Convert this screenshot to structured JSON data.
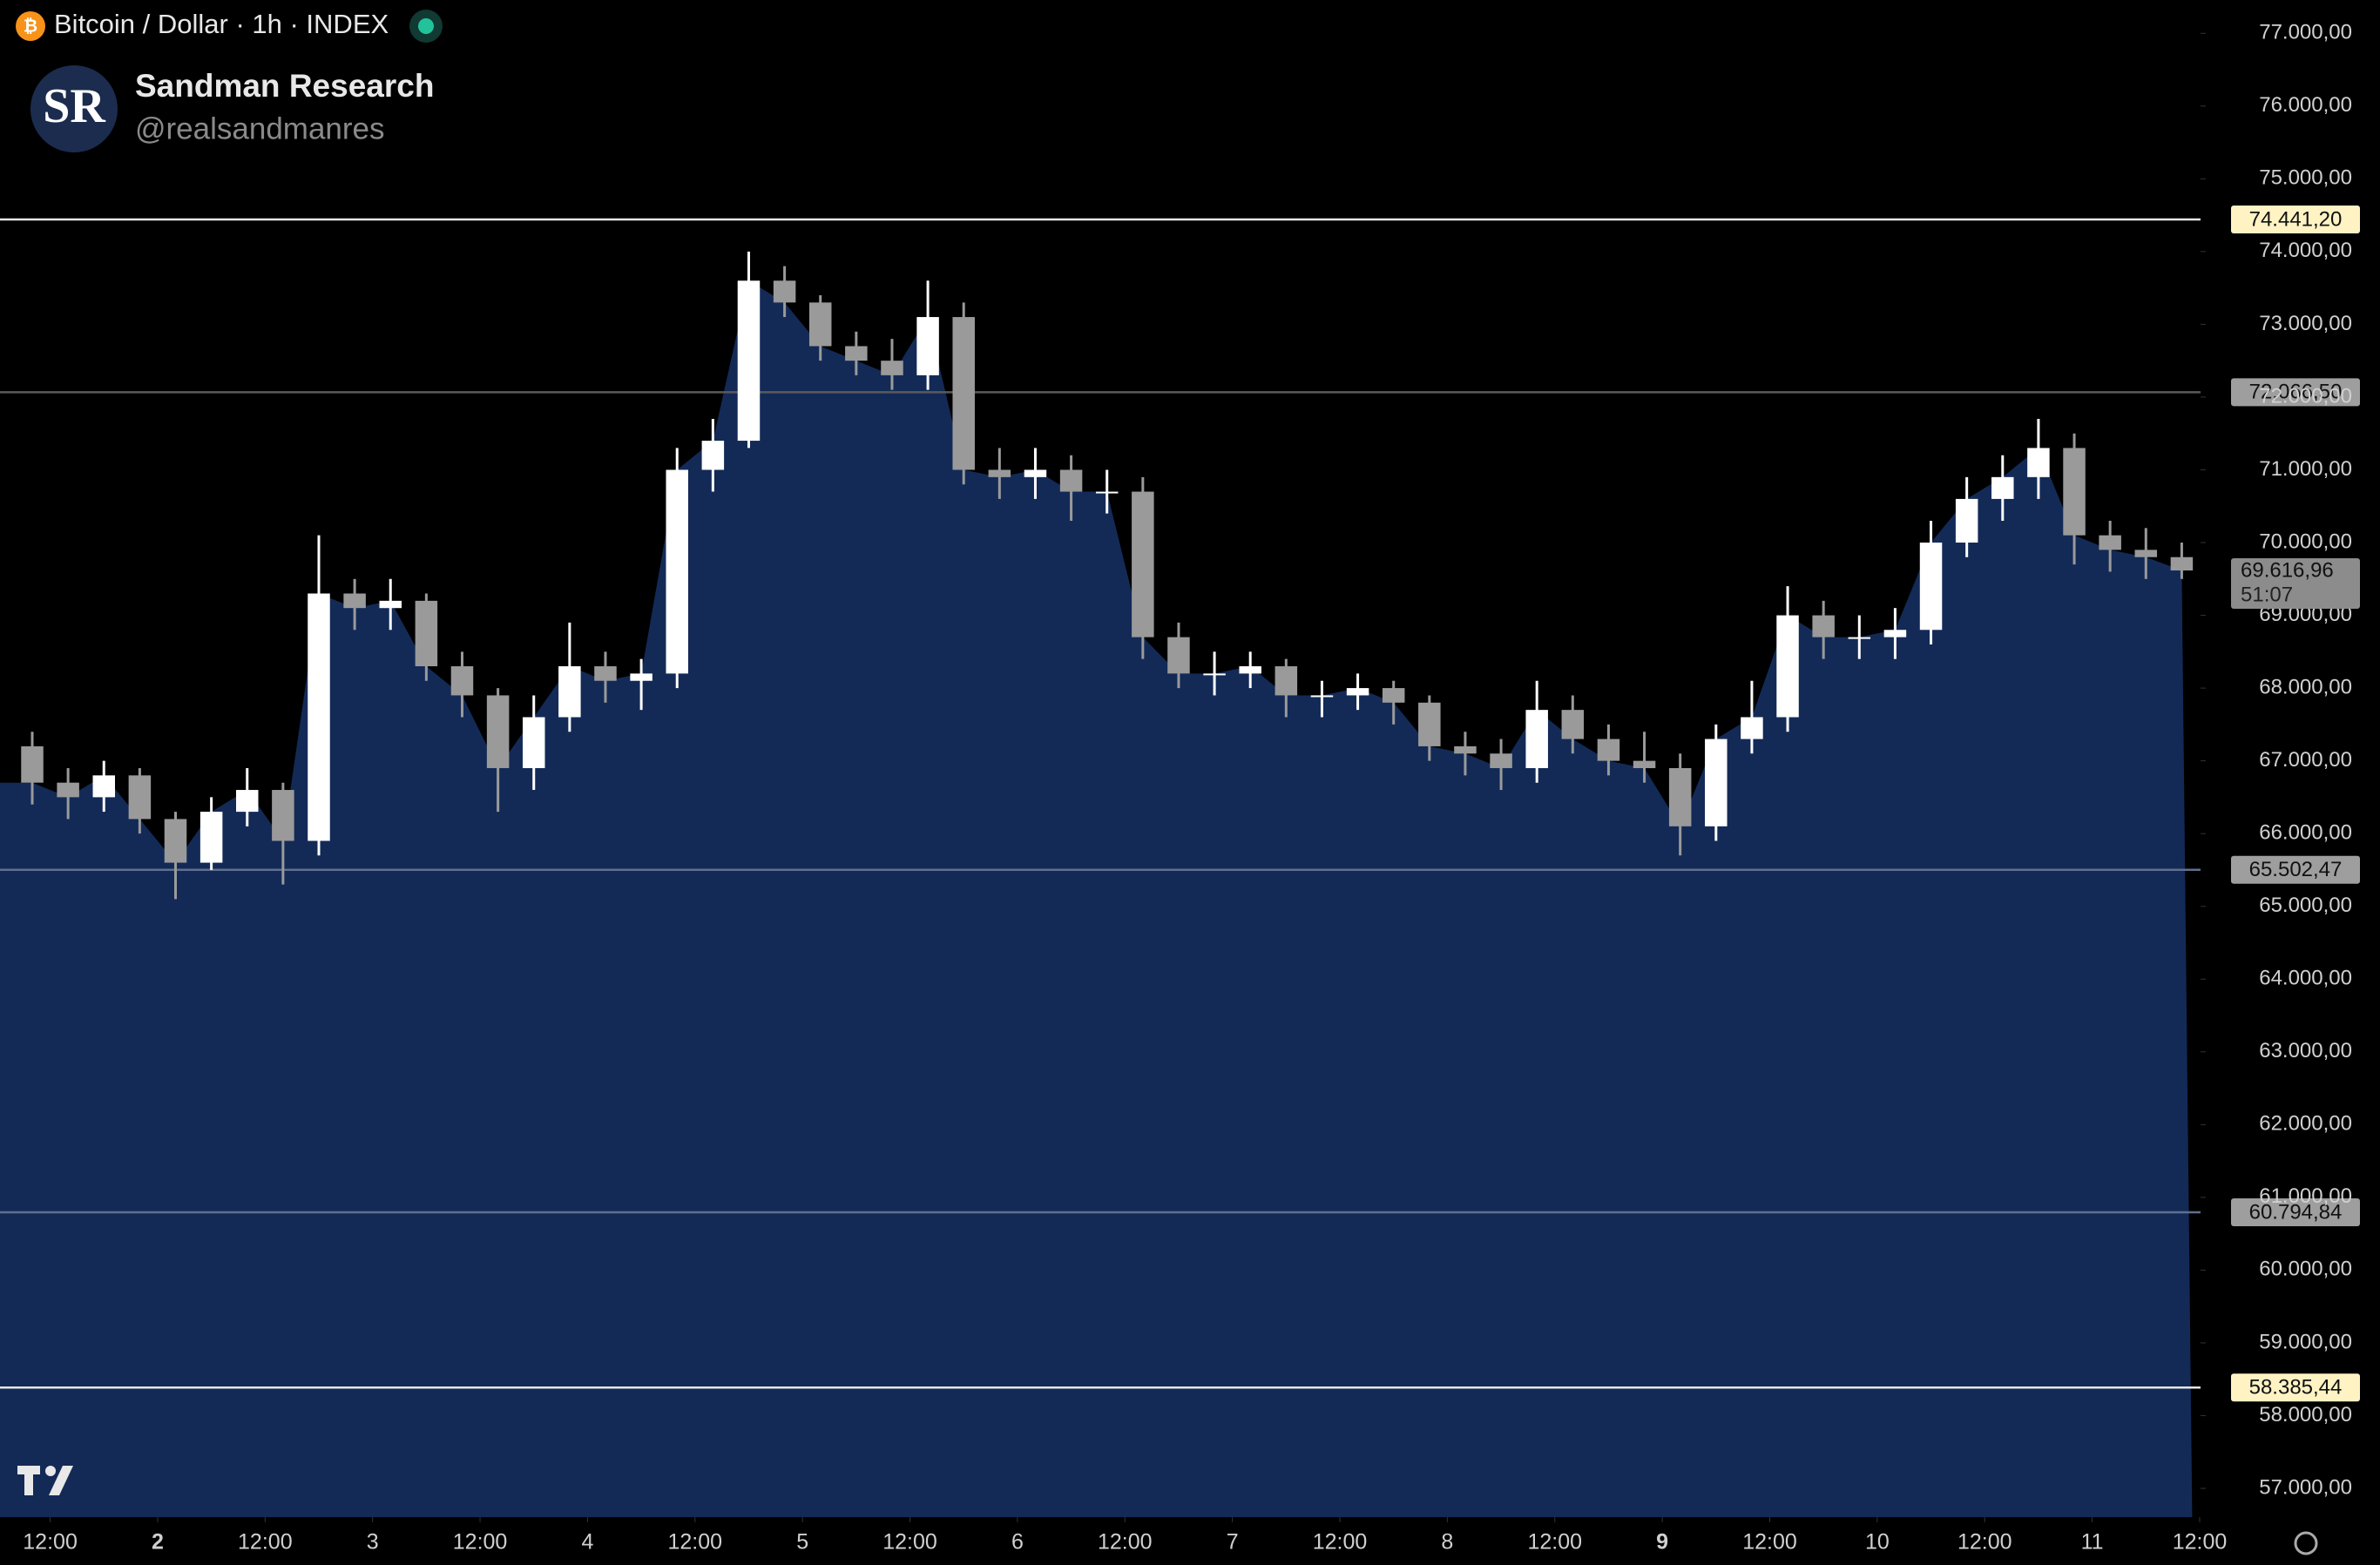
{
  "header": {
    "symbol": "Bitcoin / Dollar · 1h · INDEX",
    "author": "Sandman Research",
    "handle": "@realsandmanres",
    "logo": "SR"
  },
  "chart_data": {
    "type": "candlestick",
    "x": [
      -14,
      -10,
      -6,
      -2,
      2,
      6,
      10,
      14,
      18,
      22,
      26,
      30,
      34,
      38,
      42,
      46,
      50,
      54,
      58,
      62,
      66,
      70,
      74,
      78,
      82,
      86,
      90,
      94,
      98,
      102,
      106,
      110,
      114,
      118,
      122,
      126,
      130,
      134,
      138,
      142,
      146,
      150,
      154,
      158,
      162,
      166,
      170,
      174,
      178,
      182,
      186,
      190,
      194,
      198,
      202,
      206,
      210,
      214,
      218,
      222,
      226
    ],
    "open": [
      67200,
      66700,
      66500,
      66800,
      66200,
      65600,
      66300,
      66600,
      65900,
      69300,
      69100,
      69200,
      68300,
      67900,
      66900,
      67600,
      68300,
      68100,
      68200,
      71000,
      71400,
      73600,
      73300,
      72700,
      72500,
      72300,
      73100,
      71000,
      70900,
      71000,
      70700,
      70700,
      68700,
      68200,
      68200,
      68300,
      67900,
      67900,
      68000,
      67800,
      67200,
      67100,
      66900,
      67700,
      67300,
      67000,
      66900,
      66100,
      67300,
      67600,
      69000,
      68700,
      68700,
      68800,
      70000,
      70600,
      70900,
      71300,
      70100,
      69900,
      69800
    ],
    "high": [
      67400,
      66900,
      67000,
      66900,
      66300,
      66500,
      66900,
      66700,
      70100,
      69500,
      69500,
      69300,
      68500,
      68000,
      67900,
      68900,
      68500,
      68400,
      71300,
      71700,
      74000,
      73800,
      73400,
      72900,
      72800,
      73600,
      73300,
      71300,
      71300,
      71200,
      71000,
      70900,
      68900,
      68500,
      68500,
      68400,
      68100,
      68200,
      68100,
      67900,
      67400,
      67300,
      68100,
      67900,
      67500,
      67400,
      67100,
      67500,
      68100,
      69400,
      69200,
      69000,
      69100,
      70300,
      70900,
      71200,
      71700,
      71500,
      70300,
      70200,
      70000
    ],
    "low": [
      66400,
      66200,
      66300,
      66000,
      65100,
      65500,
      66100,
      65300,
      65700,
      68800,
      68800,
      68100,
      67600,
      66300,
      66600,
      67400,
      67800,
      67700,
      68000,
      70700,
      71300,
      73100,
      72500,
      72300,
      72100,
      72100,
      70800,
      70600,
      70600,
      70300,
      70400,
      68400,
      68000,
      67900,
      68000,
      67600,
      67600,
      67700,
      67500,
      67000,
      66800,
      66600,
      66700,
      67100,
      66800,
      66700,
      65700,
      65900,
      67100,
      67400,
      68400,
      68400,
      68400,
      68600,
      69800,
      70300,
      70600,
      69700,
      69600,
      69500,
      69500
    ],
    "close": [
      66700,
      66500,
      66800,
      66200,
      65600,
      66300,
      66600,
      65900,
      69300,
      69100,
      69200,
      68300,
      67900,
      66900,
      67600,
      68300,
      68100,
      68200,
      71000,
      71400,
      73600,
      73300,
      72700,
      72500,
      72300,
      73100,
      71000,
      70900,
      71000,
      70700,
      70700,
      68700,
      68200,
      68200,
      68300,
      67900,
      67900,
      68000,
      67800,
      67200,
      67100,
      66900,
      67700,
      67300,
      67000,
      66900,
      66100,
      67300,
      67600,
      69000,
      68700,
      68700,
      68800,
      70000,
      70600,
      70900,
      71300,
      70100,
      69900,
      69800,
      69616.96
    ],
    "up_color": "#ffffff",
    "down_color": "#9a9a9a",
    "area_color": "#132a57",
    "xlim": [
      -17.6,
      228.1
    ],
    "xticks": [
      {
        "value": -12,
        "label": "12:00"
      },
      {
        "value": 0,
        "label": "2"
      },
      {
        "value": 12,
        "label": "12:00"
      },
      {
        "value": 24,
        "label": "3"
      },
      {
        "value": 36,
        "label": "12:00"
      },
      {
        "value": 48,
        "label": "4"
      },
      {
        "value": 60,
        "label": "12:00"
      },
      {
        "value": 72,
        "label": "5"
      },
      {
        "value": 84,
        "label": "12:00"
      },
      {
        "value": 96,
        "label": "6"
      },
      {
        "value": 108,
        "label": "12:00"
      },
      {
        "value": 120,
        "label": "7"
      },
      {
        "value": 132,
        "label": "12:00"
      },
      {
        "value": 144,
        "label": "8"
      },
      {
        "value": 156,
        "label": "12:00"
      },
      {
        "value": 168,
        "label": "9"
      },
      {
        "value": 180,
        "label": "12:00"
      },
      {
        "value": 192,
        "label": "10"
      },
      {
        "value": 204,
        "label": "12:00"
      },
      {
        "value": 216,
        "label": "11"
      },
      {
        "value": 228,
        "label": "12:00"
      }
    ],
    "ylim": [
      56605,
      77458
    ],
    "yticks": [
      {
        "value": 57000,
        "label": "57.000,00"
      },
      {
        "value": 58000,
        "label": "58.000,00"
      },
      {
        "value": 59000,
        "label": "59.000,00"
      },
      {
        "value": 60000,
        "label": "60.000,00"
      },
      {
        "value": 61000,
        "label": "61.000,00"
      },
      {
        "value": 62000,
        "label": "62.000,00"
      },
      {
        "value": 63000,
        "label": "63.000,00"
      },
      {
        "value": 64000,
        "label": "64.000,00"
      },
      {
        "value": 65000,
        "label": "65.000,00"
      },
      {
        "value": 66000,
        "label": "66.000,00"
      },
      {
        "value": 67000,
        "label": "67.000,00"
      },
      {
        "value": 68000,
        "label": "68.000,00"
      },
      {
        "value": 69000,
        "label": "69.000,00"
      },
      {
        "value": 70000,
        "label": "70.000,00"
      },
      {
        "value": 71000,
        "label": "71.000,00"
      },
      {
        "value": 72000,
        "label": "72.000,00"
      },
      {
        "value": 73000,
        "label": "73.000,00"
      },
      {
        "value": 74000,
        "label": "74.000,00"
      },
      {
        "value": 75000,
        "label": "75.000,00"
      },
      {
        "value": 76000,
        "label": "76.000,00"
      },
      {
        "value": 77000,
        "label": "77.000,00"
      }
    ],
    "levels": [
      {
        "value": 74441.2,
        "label": "74.441,20",
        "line_color": "#e6e6e6",
        "label_color": "#fff3c4"
      },
      {
        "value": 72066.5,
        "label": "72.066,50",
        "line_color": "#5a5a5a",
        "label_color": "#9e9e9e"
      },
      {
        "value": 65502.47,
        "label": "65.502,47",
        "line_color": "#5f6f8f",
        "label_color": "#9e9e9e"
      },
      {
        "value": 60794.84,
        "label": "60.794,84",
        "line_color": "#5f6f8f",
        "label_color": "#9e9e9e"
      },
      {
        "value": 58385.44,
        "label": "58.385,44",
        "line_color": "#e6e6e6",
        "label_color": "#fff3c4"
      }
    ],
    "last_price": {
      "value": 69616.96,
      "label": "69.616,96",
      "countdown": "51:07",
      "color": "#8c8c8c"
    }
  }
}
